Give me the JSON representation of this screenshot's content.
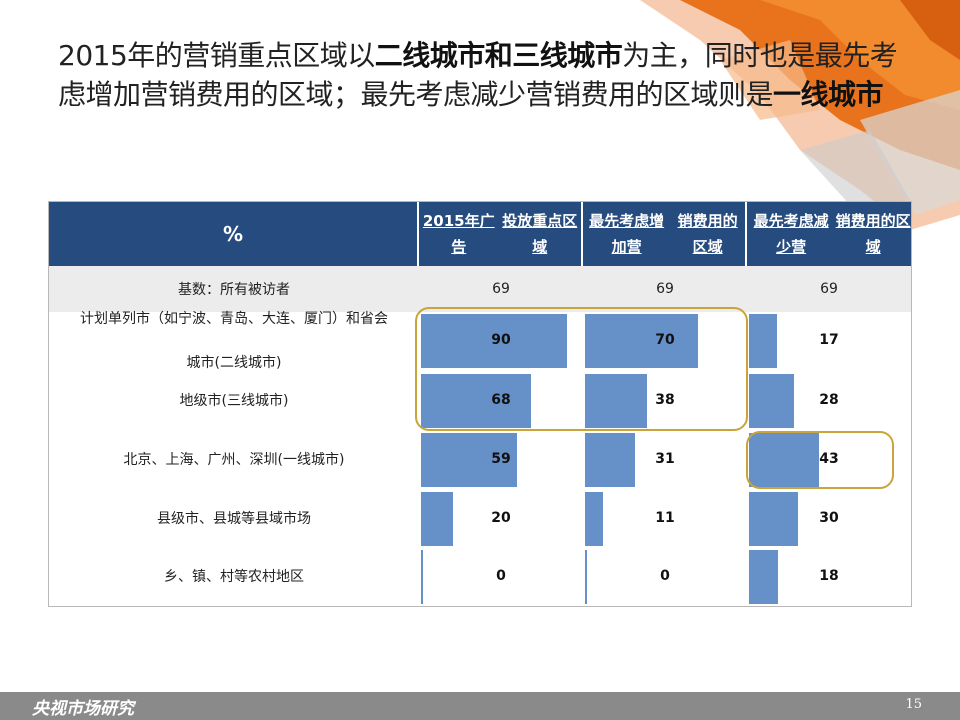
{
  "slide": {
    "title_parts": [
      {
        "text": "2015年的营销重点区域以",
        "bold": false
      },
      {
        "text": "二线城市和三线城市",
        "bold": true
      },
      {
        "text": "为主，同时也是最先考虑增加营销费用的区域；最先考虑减少营销费用的区域则是",
        "bold": false
      },
      {
        "text": "一线城市",
        "bold": true
      }
    ],
    "footer_logo": "央视市场研究",
    "page_number": "15"
  },
  "table": {
    "corner_header": "%",
    "base_label": "基数：所有被访者",
    "base_values": [
      "69",
      "69",
      "69"
    ]
  },
  "highlights": [
    {
      "note": "二线/三线城市 in first two columns"
    },
    {
      "note": "一线城市 in decrease column"
    }
  ],
  "colors": {
    "header_bg": "#264b7e",
    "bar": "#6690c8",
    "highlight": "#c8a43a",
    "accent_orange": "#e8731c"
  },
  "chart_data": {
    "type": "table",
    "columns": [
      "2015年广告投放重点区域",
      "最先考虑增加营销费用的区域",
      "最先考虑减少营销费用的区域"
    ],
    "categories": [
      "计划单列市（如宁波、青岛、大连、厦门）和省会城市(二线城市)",
      "地级市(三线城市)",
      "北京、上海、广州、深圳(一线城市)",
      "县级市、县城等县域市场",
      "乡、镇、村等农村地区"
    ],
    "series": [
      {
        "name": "2015年广告投放重点区域",
        "values": [
          90,
          68,
          59,
          20,
          0
        ]
      },
      {
        "name": "最先考虑增加营销费用的区域",
        "values": [
          70,
          38,
          31,
          11,
          0
        ]
      },
      {
        "name": "最先考虑减少营销费用的区域",
        "values": [
          17,
          28,
          43,
          30,
          18
        ]
      }
    ],
    "ylim": [
      0,
      100
    ]
  }
}
